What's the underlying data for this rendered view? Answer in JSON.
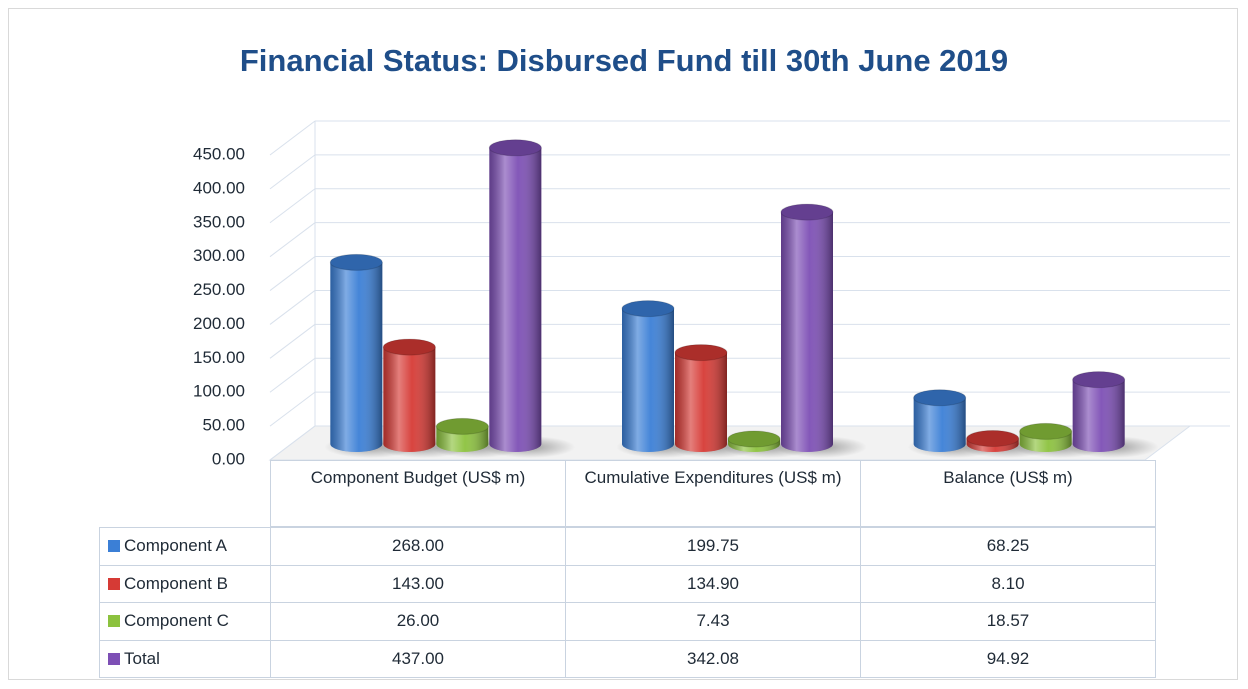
{
  "chart_data": {
    "type": "bar",
    "title": "Financial Status: Disbursed Fund till 30th June 2019",
    "categories": [
      "Component Budget (US$ m)",
      "Cumulative Expenditures (US$ m)",
      "Balance (US$ m)"
    ],
    "series": [
      {
        "name": "Component A",
        "color": "#3b7fd6",
        "values": [
          268.0,
          199.75,
          68.25
        ],
        "value_labels": [
          "268.00",
          "199.75",
          "68.25"
        ]
      },
      {
        "name": "Component B",
        "color": "#d63a35",
        "values": [
          143.0,
          134.9,
          8.1
        ],
        "value_labels": [
          "143.00",
          "134.90",
          "8.10"
        ]
      },
      {
        "name": "Component C",
        "color": "#8cc23e",
        "values": [
          26.0,
          7.43,
          18.57
        ],
        "value_labels": [
          "26.00",
          "7.43",
          "18.57"
        ]
      },
      {
        "name": "Total",
        "color": "#7d4fb5",
        "values": [
          437.0,
          342.08,
          94.92
        ],
        "value_labels": [
          "437.00",
          "342.08",
          "94.92"
        ]
      }
    ],
    "ylim": [
      0,
      450
    ],
    "yticks": [
      {
        "value": 0,
        "label": "0.00"
      },
      {
        "value": 50,
        "label": "50.00"
      },
      {
        "value": 100,
        "label": "100.00"
      },
      {
        "value": 150,
        "label": "150.00"
      },
      {
        "value": 200,
        "label": "200.00"
      },
      {
        "value": 250,
        "label": "250.00"
      },
      {
        "value": 300,
        "label": "300.00"
      },
      {
        "value": 350,
        "label": "350.00"
      },
      {
        "value": 400,
        "label": "400.00"
      },
      {
        "value": 450,
        "label": "450.00"
      }
    ],
    "grid": true
  }
}
